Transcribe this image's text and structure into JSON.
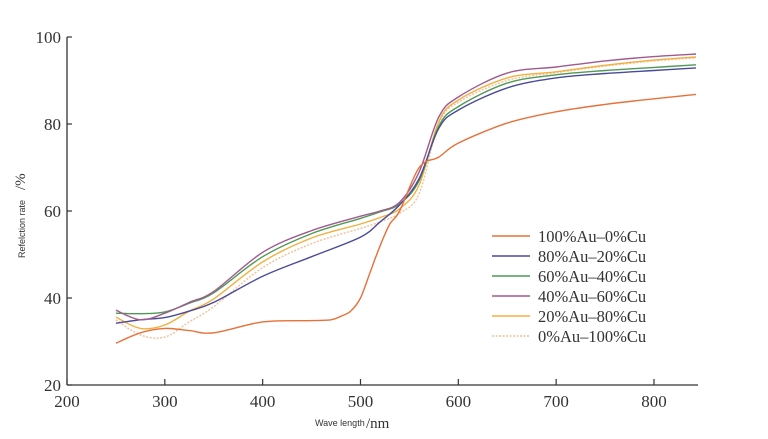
{
  "chart_data": {
    "type": "line",
    "title": "",
    "xlabel": "Wave length",
    "xlabel_unit": "/nm",
    "ylabel": "Refelction rate",
    "ylabel_unit": "/%",
    "xlim": [
      200,
      845
    ],
    "ylim": [
      20,
      100
    ],
    "xticks": [
      "200",
      "300",
      "400",
      "500",
      "600",
      "700",
      "800"
    ],
    "yticks": [
      "20",
      "40",
      "60",
      "80",
      "100"
    ],
    "grid": false,
    "legend_position": "center-right",
    "series": [
      {
        "name": "100%Au–0%Cu",
        "color": "#e8703a",
        "style": "solid",
        "x": [
          250,
          275,
          300,
          325,
          350,
          400,
          450,
          470,
          480,
          490,
          500,
          510,
          520,
          530,
          540,
          560,
          580,
          600,
          650,
          700,
          750,
          800,
          843
        ],
        "y": [
          29.6,
          32,
          33,
          32.5,
          32,
          34.5,
          34.8,
          35,
          35.8,
          37,
          40,
          46,
          52,
          57,
          60,
          70,
          72.4,
          75.6,
          80.2,
          82.8,
          84.5,
          85.8,
          86.8
        ]
      },
      {
        "name": "80%Au–20%Cu",
        "color": "#4a4a9a",
        "style": "solid",
        "x": [
          250,
          275,
          300,
          325,
          350,
          400,
          450,
          500,
          520,
          540,
          560,
          580,
          600,
          650,
          700,
          750,
          800,
          843
        ],
        "y": [
          34.2,
          35,
          35.5,
          37,
          39,
          45,
          49.5,
          54,
          57.5,
          61.4,
          67.5,
          79,
          83.2,
          88.3,
          90.6,
          91.6,
          92.3,
          92.9
        ]
      },
      {
        "name": "60%Au–40%Cu",
        "color": "#4f9a55",
        "style": "solid",
        "x": [
          250,
          275,
          300,
          325,
          350,
          400,
          450,
          500,
          520,
          540,
          560,
          580,
          600,
          650,
          700,
          750,
          800,
          843
        ],
        "y": [
          36.5,
          36.4,
          36.8,
          38.8,
          41.2,
          49.5,
          54.8,
          58.3,
          59.8,
          61.6,
          67,
          79.5,
          84,
          89.4,
          91.3,
          92.3,
          93,
          93.6
        ]
      },
      {
        "name": "40%Au–60%Cu",
        "color": "#a05a90",
        "style": "solid",
        "x": [
          250,
          275,
          300,
          325,
          350,
          400,
          450,
          500,
          520,
          540,
          560,
          580,
          600,
          650,
          700,
          750,
          800,
          843
        ],
        "y": [
          37.2,
          35,
          36.5,
          39,
          41.5,
          50.5,
          55.5,
          58.8,
          60,
          62,
          69,
          81.6,
          86.2,
          91.7,
          93.1,
          94.5,
          95.5,
          96.1
        ]
      },
      {
        "name": "20%Au–80%Cu",
        "color": "#f0b040",
        "style": "solid",
        "x": [
          250,
          275,
          300,
          325,
          350,
          400,
          450,
          500,
          520,
          540,
          560,
          580,
          600,
          650,
          700,
          750,
          800,
          843
        ],
        "y": [
          35.6,
          33,
          33.8,
          37,
          39.8,
          48.3,
          53.8,
          57,
          58.5,
          60.5,
          66,
          80.5,
          85.5,
          90.6,
          92,
          93.5,
          94.7,
          95.4
        ]
      },
      {
        "name": "0%Au–100%Cu",
        "color": "#f2bf98",
        "style": "dotted",
        "x": [
          250,
          275,
          300,
          325,
          350,
          400,
          450,
          500,
          520,
          540,
          560,
          580,
          600,
          650,
          700,
          750,
          800,
          843
        ],
        "y": [
          35,
          31.5,
          31,
          34.5,
          38,
          47,
          52.5,
          56,
          57.5,
          59.5,
          64,
          80,
          85,
          90,
          91.8,
          93.3,
          94.5,
          95.2
        ]
      }
    ]
  }
}
